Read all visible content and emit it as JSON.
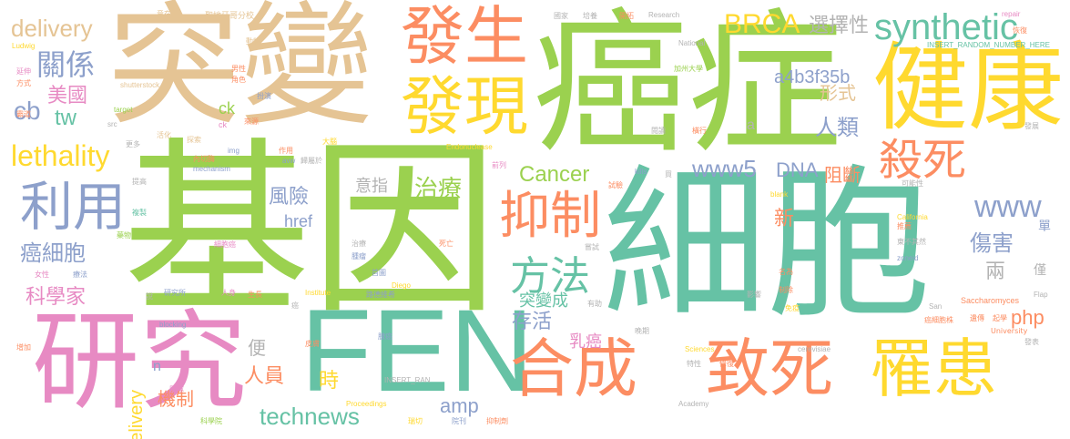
{
  "palette": {
    "green": "#9bd14f",
    "orange": "#fc8d62",
    "teal": "#66c2a5",
    "yellow": "#ffd92f",
    "blue": "#8da0cb",
    "pink": "#e78ac3",
    "tan": "#e5c494",
    "gray": "#b3b3b3"
  },
  "words": {
    "gene": "基因",
    "cell": "細胞",
    "cancer": "癌症",
    "mutation": "突變",
    "research": "研究",
    "fen": "FEN",
    "health": "健康",
    "occur": "發生",
    "discover": "發現",
    "synthesis": "合成",
    "lethal": "致死",
    "patient": "罹患",
    "use": "利用",
    "inhibit": "抑制",
    "method": "方法",
    "kill": "殺死",
    "synthetic": "synthetic",
    "delivery_top": "delivery",
    "brca": "BRCA",
    "select": "選擇性",
    "relation": "關係",
    "usa": "美國",
    "cb": "cb",
    "tw": "tw",
    "lethality": "lethality",
    "cancer_cells": "癌細胞",
    "scientist": "科學家",
    "hash": "a4b3f35b",
    "form": "形式",
    "human": "人類",
    "block": "阻斷",
    "www5": "www5",
    "dna": "DNA",
    "cancer_en": "Cancer",
    "meaning": "意指",
    "treatment": "治療",
    "risk": "風險",
    "href": "href",
    "www": "www",
    "new": "新",
    "harm": "傷害",
    "two": "兩",
    "only": "僅",
    "single": "單",
    "mutant": "突變成",
    "survive": "存活",
    "breast_cancer": "乳癌",
    "php": "php",
    "convenient": "便",
    "personnel": "人員",
    "time": "時",
    "technews": "technews",
    "amp": "amp",
    "mechanism_zh": "機制",
    "delivery": "delivery",
    "ck": "ck",
    "a": "a",
    "n": "n",
    "small": [
      "意在",
      "聖地牙哥分校",
      "國家",
      "培養",
      "開拓",
      "Research",
      "repair",
      "Ludwig",
      "動物",
      "National",
      "INSERT_RANDOM_NUMBER_HERE",
      "恢復",
      "延伸",
      "方式",
      "加州大學",
      "男性",
      "角色",
      "shutterstock",
      "target",
      "ck",
      "霸道",
      "扮演",
      "來源",
      "src",
      "發展",
      "更多",
      "活化",
      "探索",
      "img",
      "作用",
      "大腦",
      "閱讀",
      "橫行",
      "前列",
      "Endonuclease",
      "kills",
      "買",
      "內切酶",
      "mechanism",
      "avw",
      "歸屬於",
      "提高",
      "blank",
      "可能性",
      "試驗",
      "複製",
      "藥物",
      "California",
      "推薦",
      "女性",
      "療法",
      "治療",
      "腫瘤",
      "死亡",
      "嘗試",
      "東不其然",
      "zoneid",
      "細胞癌",
      "Institute",
      "首圖",
      "研究所",
      "人身",
      "生長",
      "Diego",
      "有助",
      "名為",
      "影響",
      "制除",
      "Saccharomyces",
      "免疫",
      "說",
      "路德維希",
      "癌",
      "San",
      "blocking",
      "Flap",
      "遺傳",
      "起學",
      "癌細胞株",
      "增加",
      "皮膚",
      "晚期",
      "University",
      "腺癌",
      "特性",
      "修復",
      "Sciences",
      "cerevisiae",
      "發表",
      "INSERT_RAN",
      "團隊",
      "Proceedings",
      "Academy",
      "科學院",
      "瑞切",
      "院刊",
      "抑制劑"
    ]
  }
}
